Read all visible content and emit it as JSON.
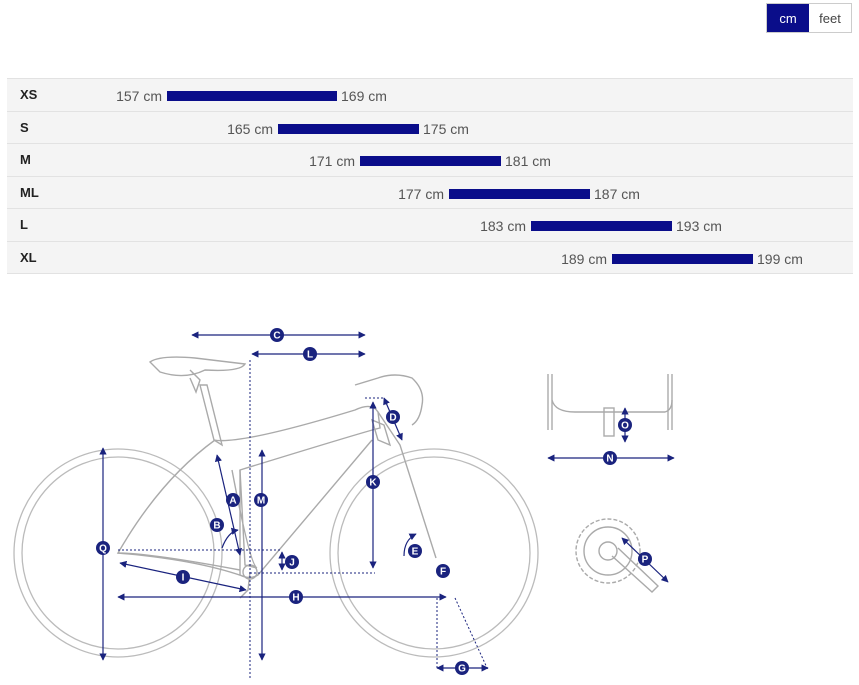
{
  "unit_toggle": {
    "cm_label": "cm",
    "feet_label": "feet",
    "selected": "cm"
  },
  "accent_color": "#0a0d8a",
  "sizes": [
    {
      "label": "XS",
      "min": "157 cm",
      "max": "169 cm",
      "min_value": 157,
      "max_value": 169
    },
    {
      "label": "S",
      "min": "165 cm",
      "max": "175 cm",
      "min_value": 165,
      "max_value": 175
    },
    {
      "label": "M",
      "min": "171 cm",
      "max": "181 cm",
      "min_value": 171,
      "max_value": 181
    },
    {
      "label": "ML",
      "min": "177 cm",
      "max": "187 cm",
      "min_value": 177,
      "max_value": 187
    },
    {
      "label": "L",
      "min": "183 cm",
      "max": "193 cm",
      "min_value": 183,
      "max_value": 193
    },
    {
      "label": "XL",
      "min": "189 cm",
      "max": "199 cm",
      "min_value": 189,
      "max_value": 199
    }
  ],
  "diagram_labels": [
    "A",
    "B",
    "C",
    "D",
    "E",
    "F",
    "G",
    "H",
    "I",
    "J",
    "K",
    "L",
    "M",
    "N",
    "O",
    "P",
    "Q"
  ]
}
